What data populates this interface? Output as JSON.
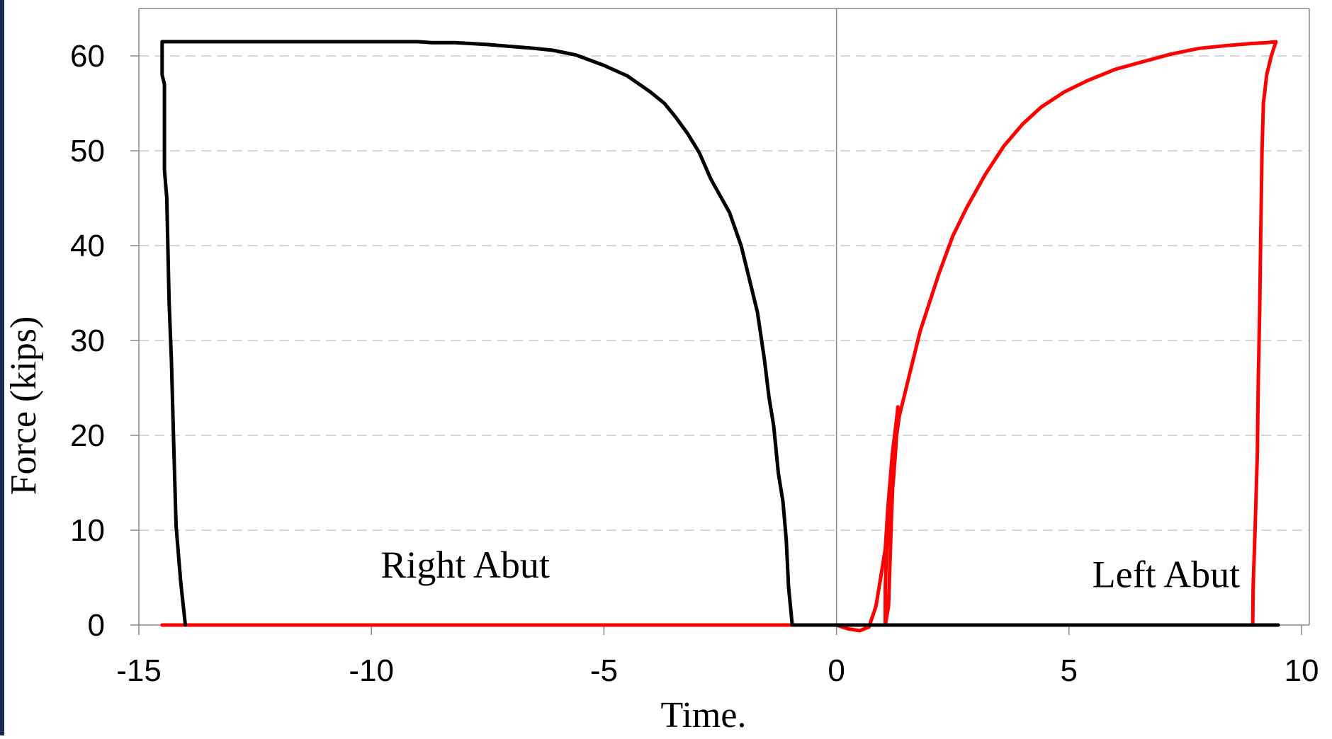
{
  "chart_data": {
    "type": "line",
    "xlabel": "Time.",
    "ylabel": "Force (kips)",
    "xlim": [
      -15,
      10
    ],
    "ylim": [
      0,
      60
    ],
    "x_ticks": [
      -15,
      -10,
      -5,
      0,
      5,
      10
    ],
    "y_ticks": [
      0,
      10,
      20,
      30,
      40,
      50,
      60
    ],
    "grid": "horizontal dashed",
    "annotations": [
      {
        "text": "Right Abut",
        "x": -9.8,
        "y": 5
      },
      {
        "text": "Left Abut",
        "x": 5.5,
        "y": 4
      }
    ],
    "series": [
      {
        "color": "#000000",
        "values": [
          [
            -14.0,
            0.0
          ],
          [
            -14.1,
            4.5
          ],
          [
            -14.2,
            10.5
          ],
          [
            -14.25,
            19.0
          ],
          [
            -14.3,
            28.0
          ],
          [
            -14.35,
            34.0
          ],
          [
            -14.4,
            45.0
          ],
          [
            -14.45,
            48.0
          ],
          [
            -14.45,
            57.0
          ],
          [
            -14.5,
            58.0
          ],
          [
            -14.5,
            61.5
          ],
          [
            -13.0,
            61.5
          ],
          [
            -11.0,
            61.5
          ],
          [
            -9.0,
            61.5
          ],
          [
            -8.7,
            61.4
          ],
          [
            -8.2,
            61.4
          ],
          [
            -7.5,
            61.2
          ],
          [
            -7.0,
            61.0
          ],
          [
            -6.5,
            60.8
          ],
          [
            -6.1,
            60.6
          ],
          [
            -5.6,
            60.1
          ],
          [
            -5.0,
            59.0
          ],
          [
            -4.5,
            57.9
          ],
          [
            -4.0,
            56.2
          ],
          [
            -3.7,
            55.0
          ],
          [
            -3.45,
            53.5
          ],
          [
            -3.2,
            51.8
          ],
          [
            -2.95,
            49.8
          ],
          [
            -2.7,
            47.0
          ],
          [
            -2.3,
            43.5
          ],
          [
            -2.05,
            40.0
          ],
          [
            -1.85,
            36.0
          ],
          [
            -1.7,
            33.0
          ],
          [
            -1.55,
            28.0
          ],
          [
            -1.45,
            24.0
          ],
          [
            -1.35,
            21.0
          ],
          [
            -1.25,
            16.0
          ],
          [
            -1.15,
            13.0
          ],
          [
            -1.08,
            9.0
          ],
          [
            -1.03,
            4.0
          ],
          [
            -0.95,
            0.0
          ],
          [
            9.5,
            0.0
          ]
        ]
      },
      {
        "color": "#ff0000",
        "values": [
          [
            -14.5,
            0.0
          ],
          [
            0.0,
            0.0
          ],
          [
            0.25,
            -0.4
          ],
          [
            0.5,
            -0.6
          ],
          [
            0.7,
            -0.2
          ],
          [
            0.85,
            2.0
          ],
          [
            0.95,
            5.0
          ],
          [
            1.05,
            8.0
          ],
          [
            1.1,
            12.0
          ],
          [
            1.15,
            15.0
          ],
          [
            1.2,
            18.0
          ],
          [
            1.25,
            20.0
          ],
          [
            1.3,
            22.0
          ],
          [
            1.32,
            23.0
          ],
          [
            1.28,
            19.0
          ],
          [
            1.22,
            15.0
          ],
          [
            1.15,
            12.0
          ],
          [
            1.08,
            8.0
          ],
          [
            1.05,
            4.0
          ],
          [
            1.05,
            0.0
          ],
          [
            1.12,
            2.0
          ],
          [
            1.18,
            11.0
          ],
          [
            1.22,
            16.0
          ],
          [
            1.28,
            19.5
          ],
          [
            1.35,
            22.0
          ],
          [
            1.45,
            24.0
          ],
          [
            1.6,
            27.0
          ],
          [
            1.8,
            31.0
          ],
          [
            2.0,
            34.0
          ],
          [
            2.2,
            37.0
          ],
          [
            2.5,
            41.0
          ],
          [
            2.8,
            44.0
          ],
          [
            3.2,
            47.5
          ],
          [
            3.6,
            50.5
          ],
          [
            4.0,
            52.8
          ],
          [
            4.4,
            54.6
          ],
          [
            4.9,
            56.2
          ],
          [
            5.4,
            57.4
          ],
          [
            6.0,
            58.6
          ],
          [
            6.6,
            59.4
          ],
          [
            7.2,
            60.2
          ],
          [
            7.8,
            60.8
          ],
          [
            8.4,
            61.1
          ],
          [
            8.9,
            61.3
          ],
          [
            9.25,
            61.4
          ],
          [
            9.45,
            61.5
          ],
          [
            9.35,
            60.0
          ],
          [
            9.25,
            58.0
          ],
          [
            9.18,
            55.0
          ],
          [
            9.15,
            50.0
          ],
          [
            9.12,
            40.0
          ],
          [
            9.1,
            33.0
          ],
          [
            9.07,
            26.0
          ],
          [
            9.05,
            18.0
          ],
          [
            9.0,
            10.0
          ],
          [
            8.96,
            4.0
          ],
          [
            8.95,
            0.0
          ]
        ]
      }
    ]
  }
}
